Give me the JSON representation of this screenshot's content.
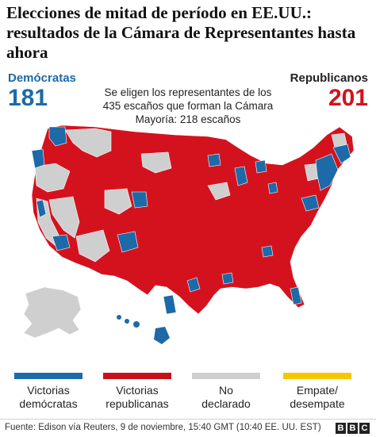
{
  "title": "Elecciones de mitad de período en EE.UU.: resultados de la Cámara de Representantes hasta ahora",
  "democrats": {
    "label": "Demócratas",
    "seats": "181",
    "color": "#1c6aa8"
  },
  "republicans": {
    "label": "Republicanos",
    "seats": "201",
    "color": "#d4121e"
  },
  "note": {
    "line1": "Se eligen los representantes de los",
    "line2": "435 escaños que forman la Cámara",
    "line3": "Mayoría: 218 escaños"
  },
  "legend": {
    "dem": {
      "line1": "Victorias",
      "line2": "demócratas",
      "color": "#1c6aa8"
    },
    "rep": {
      "line1": "Victorias",
      "line2": "republicanas",
      "color": "#c8101b"
    },
    "undeclared": {
      "line1": "No",
      "line2": "declarado",
      "color": "#cfcfcf"
    },
    "tie": {
      "line1": "Empate/",
      "line2": "desempate",
      "color": "#f6c700"
    }
  },
  "source": "Fuente: Edison vía Reuters, 9 de noviembre, 15:40 GMT (10:40 EE. UU. EST)",
  "logo": [
    "B",
    "B",
    "C"
  ]
}
